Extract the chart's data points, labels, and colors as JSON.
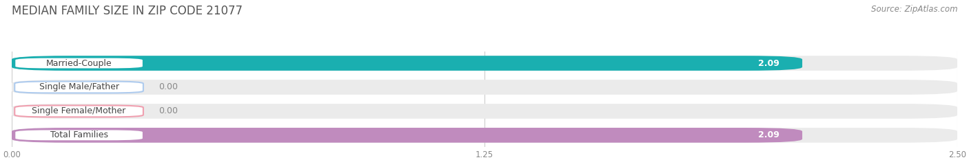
{
  "title": "MEDIAN FAMILY SIZE IN ZIP CODE 21077",
  "source": "Source: ZipAtlas.com",
  "categories": [
    "Married-Couple",
    "Single Male/Father",
    "Single Female/Mother",
    "Total Families"
  ],
  "values": [
    2.09,
    0.0,
    0.0,
    2.09
  ],
  "bar_colors": [
    "#1AAFB0",
    "#AECBEE",
    "#F0A0B0",
    "#C08BBE"
  ],
  "xlim": [
    0,
    2.5
  ],
  "xticks": [
    0.0,
    1.25,
    2.5
  ],
  "xtick_labels": [
    "0.00",
    "1.25",
    "2.50"
  ],
  "bar_height": 0.62,
  "background_color": "#ffffff",
  "bar_background_color": "#ebebeb",
  "title_fontsize": 12,
  "source_fontsize": 8.5,
  "label_fontsize": 9,
  "value_fontsize": 9
}
